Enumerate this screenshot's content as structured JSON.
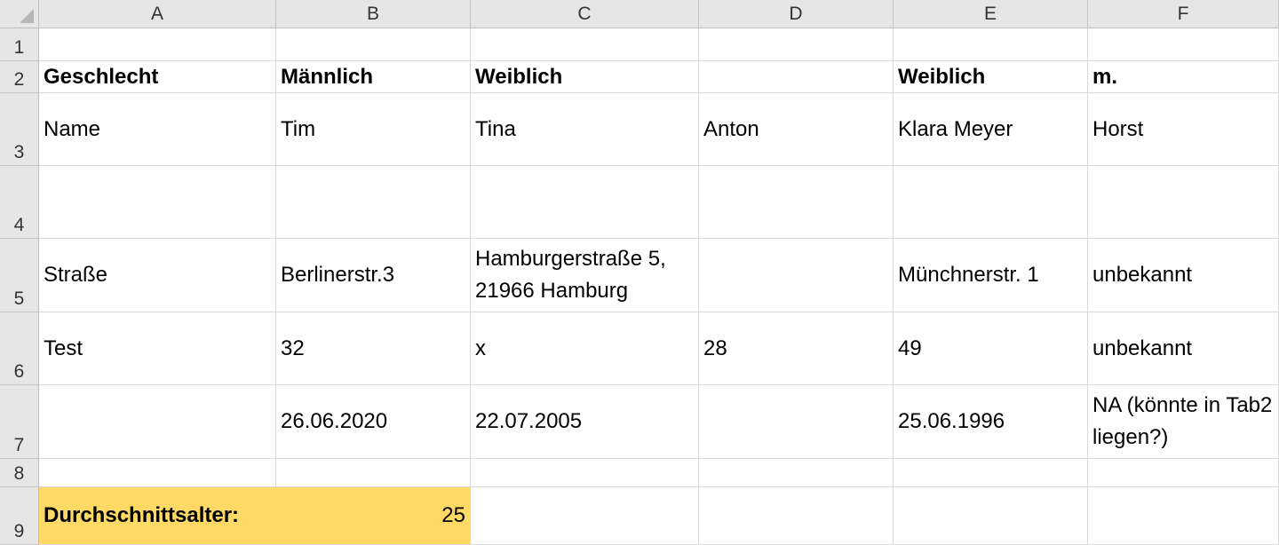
{
  "columns": [
    "A",
    "B",
    "C",
    "D",
    "E",
    "F"
  ],
  "rows": [
    "1",
    "2",
    "3",
    "4",
    "5",
    "6",
    "7",
    "8",
    "9"
  ],
  "cells": {
    "A2": "Geschlecht",
    "B2": "Männlich",
    "C2": "Weiblich",
    "D2": "",
    "E2": "Weiblich",
    "F2": "m.",
    "A3": "Name",
    "B3": "Tim",
    "C3": "Tina",
    "D3": "Anton",
    "E3": "Klara Meyer",
    "F3": "Horst",
    "A5": "Straße",
    "B5": "Berlinerstr.3",
    "C5": "Hamburgerstraße 5, 21966 Hamburg",
    "D5": "",
    "E5": "Münchnerstr. 1",
    "F5": "unbekannt",
    "A6": "Test",
    "B6": "32",
    "C6": "x",
    "D6": "28",
    "E6": "49",
    "F6": "unbekannt",
    "A7": "",
    "B7": "26.06.2020",
    "C7": "22.07.2005",
    "D7": "",
    "E7": "25.06.1996",
    "F7": "NA (könnte in Tab2 liegen?)",
    "A9": "Durchschnittsalter:",
    "B9": "25"
  },
  "highlight_color": "#ffd966"
}
